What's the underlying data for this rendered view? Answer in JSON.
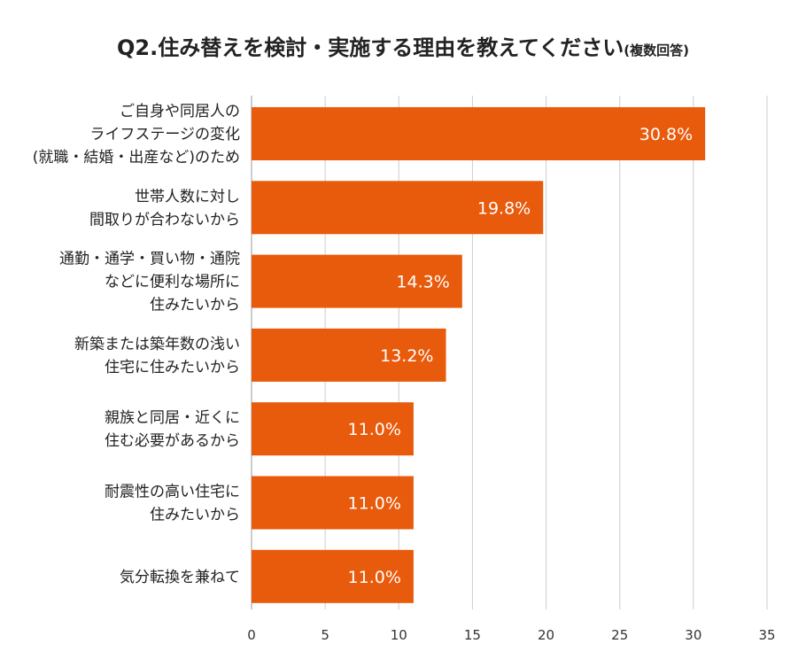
{
  "chart_data": {
    "type": "bar",
    "orientation": "horizontal",
    "title": "Q2.住み替えを検討・実施する理由を教えてください",
    "subtitle": "(複数回答)",
    "categories": [
      [
        "ご自身や同居人の",
        "ライフステージの変化",
        "(就職・結婚・出産など)のため"
      ],
      [
        "世帯人数に対し",
        "間取りが合わないから"
      ],
      [
        "通勤・通学・買い物・通院",
        "などに便利な場所に",
        "住みたいから"
      ],
      [
        "新築または築年数の浅い",
        "住宅に住みたいから"
      ],
      [
        "親族と同居・近くに",
        "住む必要があるから"
      ],
      [
        "耐震性の高い住宅に",
        "住みたいから"
      ],
      [
        "気分転換を兼ねて"
      ]
    ],
    "values": [
      30.8,
      19.8,
      14.3,
      13.2,
      11.0,
      11.0,
      11.0
    ],
    "value_labels": [
      "30.8%",
      "19.8%",
      "14.3%",
      "13.2%",
      "11.0%",
      "11.0%",
      "11.0%"
    ],
    "xlim": [
      0,
      35
    ],
    "xticks": [
      0,
      5,
      10,
      15,
      20,
      25,
      30,
      35
    ],
    "grid": true,
    "colors": {
      "bar": "#E85A0C",
      "grid": "#cccccc",
      "axis": "#999999"
    }
  }
}
